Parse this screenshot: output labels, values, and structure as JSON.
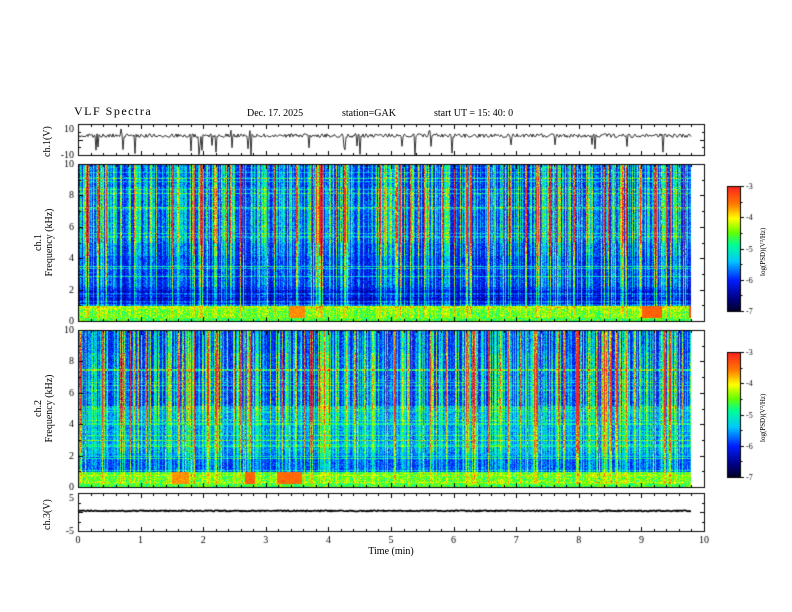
{
  "header": {
    "title": "VLF  Spectra",
    "date": "Dec. 17. 2025",
    "station": "station=GAK",
    "start_ut": "start UT =  15: 40: 0"
  },
  "x_axis": {
    "label": "Time  (min)",
    "ticks": [
      0,
      1,
      2,
      3,
      4,
      5,
      6,
      7,
      8,
      9,
      10
    ],
    "range": [
      0,
      10
    ],
    "data_end_min": 9.8
  },
  "panels": {
    "ch1_wave": {
      "ylabel": "ch.1(V)",
      "ylim": [
        -10,
        10
      ],
      "yticks": [
        10,
        -10
      ]
    },
    "ch1_spec": {
      "ylabel_line1": "ch.1",
      "ylabel_line2": "Frequency  (kHz)",
      "ylim": [
        0,
        10
      ],
      "yticks": [
        0,
        2,
        4,
        6,
        8,
        10
      ]
    },
    "ch2_spec": {
      "ylabel_line1": "ch.2",
      "ylabel_line2": "Frequency  (kHz)",
      "ylim": [
        0,
        10
      ],
      "yticks": [
        0,
        2,
        4,
        6,
        8,
        10
      ]
    },
    "ch3_wave": {
      "ylabel": "ch.3(V)",
      "ylim": [
        -5,
        5
      ],
      "yticks": [
        5,
        -5
      ]
    }
  },
  "colorbar": {
    "label": "log(PSD)(V²/Hz)",
    "ticks": [
      -3,
      -4,
      -5,
      -6,
      -7
    ],
    "range": [
      -7,
      -3
    ]
  },
  "colormap": {
    "stops": [
      [
        0.0,
        "#000026"
      ],
      [
        0.1,
        "#000084"
      ],
      [
        0.25,
        "#001eff"
      ],
      [
        0.4,
        "#00c8ff"
      ],
      [
        0.53,
        "#00ff96"
      ],
      [
        0.63,
        "#64ff00"
      ],
      [
        0.74,
        "#ffff00"
      ],
      [
        0.86,
        "#ff7800"
      ],
      [
        1.0,
        "#ff2020"
      ]
    ]
  },
  "chart_data": [
    {
      "id": "ch1-waveform",
      "type": "line",
      "title": "ch.1 broadband voltage",
      "ylabel": "ch.1(V)",
      "ylim": [
        -10,
        10
      ],
      "xlim": [
        0,
        10
      ],
      "xlabel": "Time (min)",
      "data_end_min": 9.8,
      "description": "Noisy trace near +2.5 V with frequent impulsive downward spikes (sferics) reaching -10 V",
      "baseline": 2.5,
      "noise_amp": 1.2,
      "spike_prob": 0.05,
      "spike_min": -10,
      "spike_max": -3,
      "seed": 11
    },
    {
      "id": "ch1-spectrogram",
      "type": "heatmap",
      "title": "ch.1 VLF spectrogram",
      "ylabel": "ch.1 Frequency (kHz)",
      "ylim": [
        0,
        10
      ],
      "xlim": [
        0,
        10
      ],
      "xlabel": "Time (min)",
      "zlabel": "log(PSD)(V²/Hz)",
      "zlim": [
        -7,
        -3
      ],
      "colormap": "jet-like",
      "description": "Dense vertical broadband sferic streaks (cyan/green/yellow/red) on blue background ~-6.3; intense yellow-orange band below 1 kHz with red patches; darker band 1-2 kHz",
      "bg": 0.16,
      "green_boost": 0,
      "band_top_khz": 1.02,
      "seed": 21
    },
    {
      "id": "ch2-spectrogram",
      "type": "heatmap",
      "title": "ch.2 VLF spectrogram",
      "ylabel": "ch.2 Frequency (kHz)",
      "ylim": [
        0,
        10
      ],
      "xlim": [
        0,
        10
      ],
      "xlabel": "Time (min)",
      "zlabel": "log(PSD)(V²/Hz)",
      "zlim": [
        -7,
        -3
      ],
      "colormap": "jet-like",
      "description": "Same sferic streak pattern; lower half (0-5 kHz) brighter cyan/green than ch.1; yellow band below 1 kHz",
      "bg": 0.17,
      "green_boost": 0.11,
      "band_top_khz": 1.02,
      "seed": 31
    },
    {
      "id": "ch3-waveform",
      "type": "line",
      "title": "ch.3 voltage (quiet)",
      "ylabel": "ch.3(V)",
      "ylim": [
        -5,
        5
      ],
      "xlim": [
        0,
        10
      ],
      "xlabel": "Time (min)",
      "data_end_min": 9.8,
      "description": "Flat quiet trace near +0.3 V for the whole interval",
      "baseline": 0.3,
      "noise_amp": 0.15,
      "spike_prob": 0,
      "spike_min": 0,
      "spike_max": 0,
      "seed": 41
    }
  ]
}
